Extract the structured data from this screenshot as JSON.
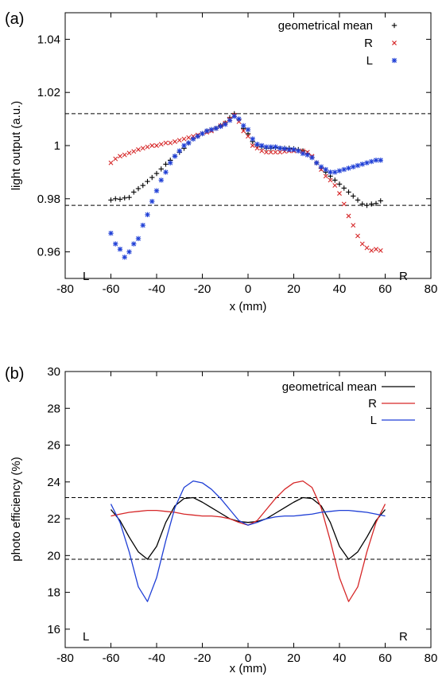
{
  "chart_data": [
    {
      "id": "a",
      "type": "scatter",
      "panel_label": "(a)",
      "xlabel": "x  (mm)",
      "ylabel": "light output (a.u.)",
      "xlim": [
        -80,
        80
      ],
      "ylim": [
        0.95,
        1.05
      ],
      "xticks": [
        -80,
        -60,
        -40,
        -20,
        0,
        20,
        40,
        60,
        80
      ],
      "yticks": [
        0.96,
        0.98,
        1,
        1.02,
        1.04
      ],
      "ytick_labels": [
        "0.96",
        "0.98",
        "1",
        "1.02",
        "1.04"
      ],
      "grid": false,
      "legend_position": "top-right",
      "hlines": [
        1.012,
        0.9775
      ],
      "corner_labels": {
        "left": "L",
        "right": "R"
      },
      "series": [
        {
          "name": "geometrical mean",
          "marker": "plus",
          "color": "#000000",
          "x": [
            -60,
            -58,
            -56,
            -54,
            -52,
            -50,
            -48,
            -46,
            -44,
            -42,
            -40,
            -38,
            -36,
            -34,
            -32,
            -30,
            -28,
            -26,
            -24,
            -22,
            -20,
            -18,
            -16,
            -14,
            -12,
            -10,
            -8,
            -6,
            -4,
            -2,
            0,
            2,
            4,
            6,
            8,
            10,
            12,
            14,
            16,
            18,
            20,
            22,
            24,
            26,
            28,
            30,
            32,
            34,
            36,
            38,
            40,
            42,
            44,
            46,
            48,
            50,
            52,
            54,
            56,
            58
          ],
          "y": [
            0.9795,
            0.98,
            0.9798,
            0.9803,
            0.9805,
            0.9825,
            0.9838,
            0.985,
            0.9865,
            0.988,
            0.9895,
            0.9912,
            0.993,
            0.9945,
            0.996,
            0.9975,
            0.999,
            1.001,
            1.0025,
            1.0035,
            1.0045,
            1.0055,
            1.006,
            1.0065,
            1.0075,
            1.0085,
            1.0105,
            1.012,
            1.01,
            1.0065,
            1.0045,
            1.0015,
            1.0,
            0.9995,
            0.999,
            0.999,
            0.9992,
            0.999,
            0.999,
            0.999,
            0.9988,
            0.9985,
            0.998,
            0.997,
            0.9955,
            0.9935,
            0.9915,
            0.99,
            0.9885,
            0.987,
            0.9855,
            0.984,
            0.9825,
            0.981,
            0.9795,
            0.978,
            0.9775,
            0.978,
            0.9782,
            0.9792
          ]
        },
        {
          "name": "R",
          "marker": "cross",
          "color": "#d62728",
          "x": [
            -60,
            -58,
            -56,
            -54,
            -52,
            -50,
            -48,
            -46,
            -44,
            -42,
            -40,
            -38,
            -36,
            -34,
            -32,
            -30,
            -28,
            -26,
            -24,
            -22,
            -20,
            -18,
            -16,
            -14,
            -12,
            -10,
            -8,
            -6,
            -4,
            -2,
            0,
            2,
            4,
            6,
            8,
            10,
            12,
            14,
            16,
            18,
            20,
            22,
            24,
            26,
            28,
            30,
            32,
            34,
            36,
            38,
            40,
            42,
            44,
            46,
            48,
            50,
            52,
            54,
            56,
            58
          ],
          "y": [
            0.9935,
            0.995,
            0.996,
            0.9965,
            0.9972,
            0.9978,
            0.9985,
            0.999,
            0.9995,
            1.0,
            1.0,
            1.0005,
            1.001,
            1.001,
            1.0015,
            1.002,
            1.0025,
            1.003,
            1.0035,
            1.004,
            1.0045,
            1.005,
            1.0055,
            1.0065,
            1.0075,
            1.0085,
            1.01,
            1.0115,
            1.009,
            1.0055,
            1.0035,
            1.0,
            0.999,
            0.998,
            0.9975,
            0.9975,
            0.9975,
            0.9975,
            0.9978,
            0.998,
            0.998,
            0.998,
            0.998,
            0.9975,
            0.996,
            0.9935,
            0.991,
            0.9885,
            0.987,
            0.985,
            0.982,
            0.978,
            0.9735,
            0.97,
            0.966,
            0.963,
            0.9615,
            0.9605,
            0.961,
            0.9605
          ]
        },
        {
          "name": "L",
          "marker": "asterisk",
          "color": "#1f3fd6",
          "x": [
            -60,
            -58,
            -56,
            -54,
            -52,
            -50,
            -48,
            -46,
            -44,
            -42,
            -40,
            -38,
            -36,
            -34,
            -32,
            -30,
            -28,
            -26,
            -24,
            -22,
            -20,
            -18,
            -16,
            -14,
            -12,
            -10,
            -8,
            -6,
            -4,
            -2,
            0,
            2,
            4,
            6,
            8,
            10,
            12,
            14,
            16,
            18,
            20,
            22,
            24,
            26,
            28,
            30,
            32,
            34,
            36,
            38,
            40,
            42,
            44,
            46,
            48,
            50,
            52,
            54,
            56,
            58
          ],
          "y": [
            0.967,
            0.963,
            0.961,
            0.958,
            0.96,
            0.963,
            0.965,
            0.97,
            0.974,
            0.979,
            0.983,
            0.987,
            0.99,
            0.9935,
            0.996,
            0.998,
            1.0,
            1.001,
            1.0025,
            1.0035,
            1.0045,
            1.0055,
            1.006,
            1.0065,
            1.0072,
            1.008,
            1.0095,
            1.011,
            1.01,
            1.0075,
            1.006,
            1.0025,
            1.0005,
            1.0,
            0.9995,
            0.9995,
            0.9995,
            0.999,
            0.9988,
            0.9985,
            0.9985,
            0.998,
            0.997,
            0.9965,
            0.9955,
            0.9935,
            0.992,
            0.991,
            0.99,
            0.99,
            0.9905,
            0.991,
            0.9915,
            0.992,
            0.9925,
            0.993,
            0.9935,
            0.994,
            0.9945,
            0.9945
          ]
        }
      ]
    },
    {
      "id": "b",
      "type": "line",
      "panel_label": "(b)",
      "xlabel": "x  (mm)",
      "ylabel": "photo efficiency (%)",
      "xlim": [
        -80,
        80
      ],
      "ylim": [
        15,
        30
      ],
      "xticks": [
        -80,
        -60,
        -40,
        -20,
        0,
        20,
        40,
        60,
        80
      ],
      "yticks": [
        16,
        18,
        20,
        22,
        24,
        26,
        28,
        30
      ],
      "ytick_labels": [
        "16",
        "18",
        "20",
        "22",
        "24",
        "26",
        "28",
        "30"
      ],
      "grid": false,
      "legend_position": "top-right",
      "hlines": [
        23.15,
        19.8
      ],
      "corner_labels": {
        "left": "L",
        "right": "R"
      },
      "series": [
        {
          "name": "geometrical mean",
          "color": "#000000",
          "x": [
            -60,
            -56,
            -52,
            -48,
            -44,
            -40,
            -36,
            -32,
            -28,
            -24,
            -20,
            -16,
            -12,
            -8,
            -4,
            0,
            4,
            8,
            12,
            16,
            20,
            24,
            28,
            32,
            36,
            40,
            44,
            48,
            52,
            56,
            60
          ],
          "y": [
            22.5,
            21.9,
            21.0,
            20.2,
            19.8,
            20.5,
            21.8,
            22.7,
            23.1,
            23.15,
            22.9,
            22.6,
            22.3,
            22.0,
            21.85,
            21.8,
            21.85,
            22.0,
            22.3,
            22.6,
            22.9,
            23.15,
            23.1,
            22.7,
            21.8,
            20.5,
            19.8,
            20.2,
            21.0,
            21.9,
            22.5
          ]
        },
        {
          "name": "R",
          "color": "#d62728",
          "x": [
            -60,
            -56,
            -52,
            -48,
            -44,
            -40,
            -36,
            -32,
            -28,
            -24,
            -20,
            -16,
            -12,
            -8,
            -4,
            0,
            4,
            8,
            12,
            16,
            20,
            24,
            28,
            32,
            36,
            40,
            44,
            48,
            52,
            56,
            60
          ],
          "y": [
            22.15,
            22.25,
            22.35,
            22.4,
            22.45,
            22.45,
            22.4,
            22.35,
            22.25,
            22.2,
            22.15,
            22.15,
            22.1,
            22.0,
            21.8,
            21.65,
            21.9,
            22.5,
            23.1,
            23.6,
            23.95,
            24.05,
            23.7,
            22.6,
            20.8,
            18.8,
            17.5,
            18.3,
            20.2,
            21.8,
            22.8
          ]
        },
        {
          "name": "L",
          "color": "#1f3fd6",
          "x": [
            -60,
            -56,
            -52,
            -48,
            -44,
            -40,
            -36,
            -32,
            -28,
            -24,
            -20,
            -16,
            -12,
            -8,
            -4,
            0,
            4,
            8,
            12,
            16,
            20,
            24,
            28,
            32,
            36,
            40,
            44,
            48,
            52,
            56,
            60
          ],
          "y": [
            22.8,
            21.8,
            20.2,
            18.3,
            17.5,
            18.8,
            20.8,
            22.6,
            23.7,
            24.05,
            23.95,
            23.6,
            23.1,
            22.5,
            21.9,
            21.65,
            21.8,
            22.0,
            22.1,
            22.15,
            22.15,
            22.2,
            22.25,
            22.35,
            22.4,
            22.45,
            22.45,
            22.4,
            22.35,
            22.25,
            22.15
          ]
        }
      ]
    }
  ]
}
